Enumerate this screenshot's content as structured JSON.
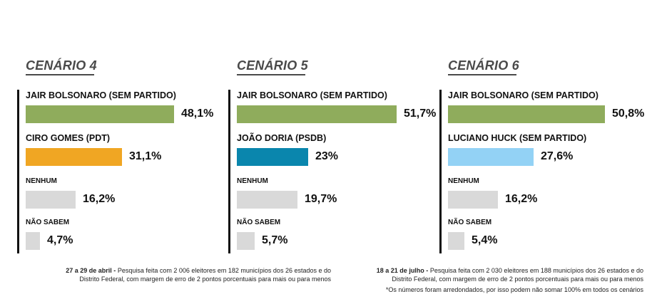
{
  "chart_data": [
    {
      "type": "bar",
      "title": "CENÁRIO 4",
      "unit": "%",
      "xlim": [
        0,
        60
      ],
      "categories": [
        "JAIR BOLSONARO (SEM PARTIDO)",
        "CIRO GOMES (PDT)",
        "NENHUM",
        "NÃO SABEM"
      ],
      "values": [
        48.1,
        31.1,
        16.2,
        4.7
      ],
      "value_labels": [
        "48,1%",
        "31,1%",
        "16,2%",
        "4,7%"
      ],
      "colors": [
        "#8fac5c",
        "#f0a623",
        "#d9d9d9",
        "#d9d9d9"
      ]
    },
    {
      "type": "bar",
      "title": "CENÁRIO 5",
      "unit": "%",
      "xlim": [
        0,
        60
      ],
      "categories": [
        "JAIR BOLSONARO (SEM PARTIDO)",
        "JOÃO DORIA (PSDB)",
        "NENHUM",
        "NÃO SABEM"
      ],
      "values": [
        51.7,
        23,
        19.7,
        5.7
      ],
      "value_labels": [
        "51,7%",
        "23%",
        "19,7%",
        "5,7%"
      ],
      "colors": [
        "#8fac5c",
        "#0a86ad",
        "#d9d9d9",
        "#d9d9d9"
      ]
    },
    {
      "type": "bar",
      "title": "CENÁRIO 6",
      "unit": "%",
      "xlim": [
        0,
        60
      ],
      "categories": [
        "JAIR BOLSONARO (SEM PARTIDO)",
        "LUCIANO HUCK (SEM PARTIDO)",
        "NENHUM",
        "NÃO SABEM"
      ],
      "values": [
        50.8,
        27.6,
        16.2,
        5.4
      ],
      "value_labels": [
        "50,8%",
        "27,6%",
        "16,2%",
        "5,4%"
      ],
      "colors": [
        "#8fac5c",
        "#93d2f5",
        "#d9d9d9",
        "#d9d9d9"
      ]
    }
  ],
  "footnotes": {
    "left": {
      "date": "27 a 29 de abril -",
      "line1": " Pesquisa feita com 2 006 eleitores em 182 municípios dos 26 estados e do",
      "line2": "Distrito Federal, com margem de erro de 2 pontos porcentuais para mais ou para menos"
    },
    "right": {
      "date": "18 a 21 de julho -",
      "line1": " Pesquisa feita com 2 030 eleitores em 188 municípios dos 26 estados e do",
      "line2": "Distrito Federal, com margem de erro de 2 pontos porcentuais para mais ou para menos",
      "line3": "*Os números foram arredondados, por isso podem não somar 100% em todos os cenários"
    }
  }
}
